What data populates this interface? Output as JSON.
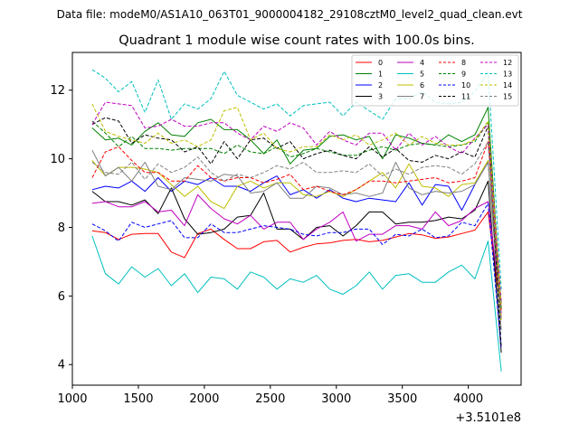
{
  "chart_data": {
    "type": "line",
    "suptitle": "Data file: modeM0/AS1A10_063T01_9000004182_29108cztM0_level2_quad_clean.evt",
    "title": "Quadrant 1 module wise count rates with 100.0s bins.",
    "xlabel": "",
    "ylabel": "",
    "x_offset_label": "+3.5101e8",
    "xlim": [
      1000,
      4400
    ],
    "ylim": [
      3.4,
      13.1
    ],
    "xticks": [
      1000,
      1500,
      2000,
      2500,
      3000,
      3500,
      4000
    ],
    "yticks": [
      4,
      6,
      8,
      10,
      12
    ],
    "grid": false,
    "legend_position": "top-right",
    "x": [
      1150,
      1250,
      1350,
      1450,
      1550,
      1650,
      1750,
      1850,
      1950,
      2050,
      2150,
      2250,
      2350,
      2450,
      2550,
      2650,
      2750,
      2850,
      2950,
      3050,
      3150,
      3250,
      3350,
      3450,
      3550,
      3650,
      3750,
      3850,
      3950,
      4050,
      4150,
      4250
    ],
    "series": [
      {
        "name": "0",
        "color": "#ff0000",
        "dash": "solid",
        "values": [
          7.9,
          7.85,
          7.65,
          7.8,
          7.82,
          7.82,
          7.28,
          7.12,
          7.82,
          7.95,
          7.65,
          7.38,
          7.38,
          7.58,
          7.62,
          7.28,
          7.42,
          7.52,
          7.55,
          7.62,
          7.65,
          7.58,
          7.62,
          7.72,
          7.82,
          7.78,
          7.68,
          7.72,
          7.82,
          7.92,
          8.45,
          5.4
        ]
      },
      {
        "name": "1",
        "color": "#008000",
        "dash": "solid",
        "values": [
          10.9,
          10.55,
          10.6,
          10.4,
          10.8,
          11.05,
          10.7,
          10.65,
          11.05,
          11.15,
          10.85,
          10.85,
          10.55,
          10.15,
          10.55,
          9.85,
          10.25,
          10.3,
          10.65,
          10.7,
          10.55,
          10.65,
          10.0,
          10.7,
          10.6,
          10.45,
          10.4,
          10.7,
          10.5,
          10.7,
          11.5,
          5.6
        ]
      },
      {
        "name": "2",
        "color": "#0000ff",
        "dash": "solid",
        "values": [
          9.1,
          9.2,
          9.15,
          9.35,
          9.05,
          9.45,
          9.05,
          9.35,
          9.25,
          9.45,
          9.2,
          9.2,
          9.05,
          9.3,
          9.5,
          8.95,
          9.1,
          8.85,
          9.1,
          8.85,
          8.75,
          8.85,
          8.8,
          8.75,
          9.3,
          8.65,
          9.25,
          9.2,
          8.5,
          9.25,
          9.9,
          5.8
        ]
      },
      {
        "name": "3",
        "color": "#000000",
        "dash": "solid",
        "values": [
          9.05,
          8.75,
          8.75,
          8.65,
          8.8,
          8.4,
          9.15,
          8.25,
          7.8,
          7.85,
          7.95,
          8.3,
          8.35,
          9.0,
          7.95,
          7.95,
          7.65,
          8.0,
          8.05,
          7.75,
          8.05,
          8.45,
          8.45,
          8.1,
          8.15,
          8.15,
          8.2,
          8.3,
          8.25,
          8.5,
          9.35,
          4.35
        ]
      },
      {
        "name": "4",
        "color": "#bf00bf",
        "dash": "solid",
        "values": [
          8.7,
          8.75,
          8.6,
          8.6,
          8.75,
          8.45,
          8.5,
          8.05,
          8.95,
          8.55,
          8.25,
          8.1,
          8.35,
          7.95,
          8.15,
          8.15,
          7.65,
          7.95,
          8.15,
          8.45,
          7.6,
          7.8,
          7.8,
          8.05,
          8.05,
          7.95,
          8.45,
          8.05,
          8.2,
          8.55,
          8.75,
          5.5
        ]
      },
      {
        "name": "5",
        "color": "#00bfbf",
        "dash": "solid",
        "values": [
          7.75,
          6.65,
          6.35,
          6.85,
          6.55,
          6.8,
          6.3,
          6.65,
          6.1,
          6.55,
          6.5,
          6.2,
          6.7,
          6.55,
          6.2,
          6.5,
          6.4,
          6.6,
          6.2,
          6.05,
          6.3,
          6.7,
          6.2,
          6.6,
          6.65,
          6.4,
          6.4,
          6.7,
          6.9,
          6.5,
          7.6,
          3.8
        ]
      },
      {
        "name": "6",
        "color": "#bfbf00",
        "dash": "solid",
        "values": [
          9.95,
          9.5,
          9.75,
          9.75,
          9.7,
          9.6,
          9.25,
          8.9,
          9.2,
          8.75,
          8.55,
          9.2,
          9.35,
          9.15,
          9.3,
          9.3,
          8.95,
          8.9,
          9.05,
          8.9,
          9.1,
          9.35,
          9.6,
          9.15,
          9.85,
          9.2,
          9.15,
          8.9,
          9.25,
          9.3,
          9.95,
          5.3
        ]
      },
      {
        "name": "7",
        "color": "#808080",
        "dash": "solid",
        "values": [
          10.25,
          9.5,
          9.75,
          9.35,
          9.9,
          9.2,
          9.1,
          9.45,
          9.4,
          9.35,
          9.55,
          9.5,
          9.0,
          9.05,
          9.3,
          8.85,
          8.85,
          9.2,
          9.15,
          8.95,
          9.0,
          8.9,
          9.0,
          9.9,
          9.15,
          8.95,
          9.05,
          9.0,
          9.05,
          9.25,
          9.9,
          5.0
        ]
      },
      {
        "name": "8",
        "color": "#ff0000",
        "dash": "dashed",
        "values": [
          9.45,
          10.2,
          10.35,
          9.95,
          9.6,
          9.6,
          9.35,
          9.35,
          9.8,
          9.45,
          9.35,
          9.45,
          9.45,
          9.3,
          9.4,
          9.55,
          9.1,
          9.2,
          9.05,
          8.95,
          9.1,
          9.35,
          9.35,
          9.3,
          9.35,
          9.4,
          9.45,
          9.3,
          9.35,
          9.45,
          10.5,
          5.6
        ]
      },
      {
        "name": "9",
        "color": "#008000",
        "dash": "dashed",
        "values": [
          11.1,
          10.75,
          10.35,
          10.65,
          10.3,
          10.3,
          10.25,
          10.3,
          10.3,
          10.3,
          10.15,
          10.4,
          10.2,
          10.15,
          10.35,
          10.05,
          10.15,
          10.3,
          10.2,
          10.1,
          10.1,
          10.25,
          10.35,
          10.25,
          10.4,
          10.45,
          10.4,
          10.35,
          10.4,
          10.5,
          11.05,
          5.65
        ]
      },
      {
        "name": "10",
        "color": "#0000ff",
        "dash": "dashed",
        "values": [
          8.1,
          7.9,
          7.6,
          8.15,
          8.0,
          8.1,
          8.2,
          7.7,
          7.7,
          8.1,
          7.85,
          7.85,
          7.95,
          8.05,
          8.0,
          7.95,
          7.8,
          7.75,
          7.85,
          7.85,
          7.95,
          7.95,
          7.5,
          7.8,
          7.75,
          7.95,
          7.7,
          7.75,
          8.15,
          8.05,
          8.7,
          4.45
        ]
      },
      {
        "name": "11",
        "color": "#000000",
        "dash": "dashed",
        "values": [
          11.0,
          11.2,
          11.1,
          10.45,
          10.7,
          10.6,
          10.55,
          10.2,
          10.35,
          9.85,
          10.5,
          10.0,
          10.55,
          10.6,
          10.3,
          10.5,
          10.0,
          10.15,
          10.25,
          10.1,
          10.0,
          10.35,
          10.05,
          10.3,
          9.95,
          9.9,
          10.1,
          10.0,
          10.2,
          10.05,
          10.95,
          4.5
        ]
      },
      {
        "name": "12",
        "color": "#bf00bf",
        "dash": "dashed",
        "values": [
          11.0,
          11.65,
          11.6,
          11.55,
          10.9,
          10.95,
          11.15,
          10.95,
          10.95,
          11.05,
          11.05,
          10.75,
          10.55,
          10.95,
          10.8,
          11.05,
          10.9,
          10.4,
          10.8,
          10.55,
          10.4,
          10.75,
          10.75,
          10.25,
          10.75,
          10.4,
          10.65,
          10.35,
          10.15,
          10.6,
          11.0,
          5.8
        ]
      },
      {
        "name": "13",
        "color": "#00bfbf",
        "dash": "dashed",
        "values": [
          12.6,
          12.35,
          11.95,
          12.25,
          11.35,
          12.3,
          11.15,
          11.6,
          11.45,
          11.75,
          12.55,
          11.85,
          11.65,
          11.45,
          11.6,
          11.25,
          11.55,
          11.6,
          11.65,
          11.25,
          11.65,
          11.4,
          11.15,
          11.75,
          11.75,
          11.95,
          11.65,
          11.6,
          11.65,
          11.95,
          12.55,
          6.2
        ]
      },
      {
        "name": "14",
        "color": "#bfbf00",
        "dash": "dashed",
        "values": [
          11.6,
          10.8,
          10.65,
          10.55,
          10.45,
          10.75,
          10.45,
          10.55,
          10.35,
          10.55,
          11.4,
          11.5,
          10.55,
          10.75,
          10.3,
          10.2,
          10.35,
          10.35,
          10.7,
          10.55,
          10.7,
          10.4,
          10.55,
          10.75,
          10.4,
          10.65,
          10.45,
          10.4,
          10.4,
          10.55,
          11.1,
          5.7
        ]
      },
      {
        "name": "15",
        "color": "#808080",
        "dash": "dashed",
        "values": [
          9.9,
          9.6,
          9.55,
          9.9,
          9.4,
          9.85,
          9.6,
          9.75,
          10.05,
          9.6,
          9.35,
          9.55,
          9.45,
          9.6,
          9.8,
          9.7,
          9.9,
          9.6,
          9.6,
          9.65,
          9.6,
          9.85,
          9.5,
          9.7,
          9.55,
          9.75,
          9.8,
          9.75,
          9.55,
          9.85,
          10.5,
          5.35
        ]
      }
    ]
  }
}
